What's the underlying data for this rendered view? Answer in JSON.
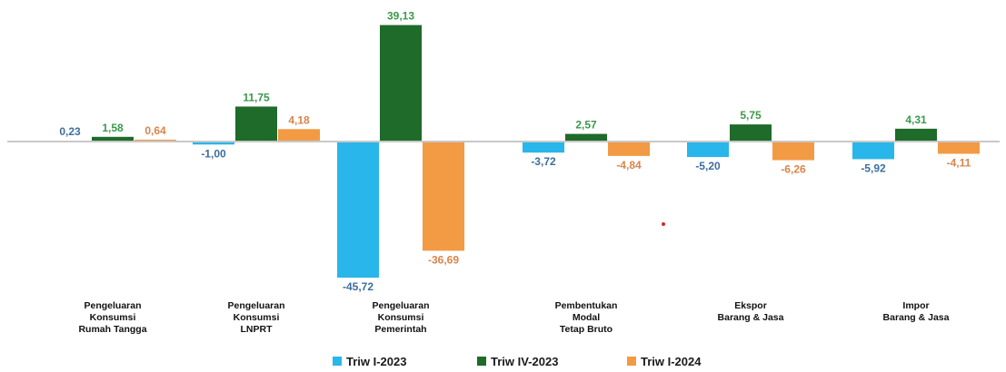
{
  "chart_data": {
    "type": "bar",
    "categories": [
      [
        "Pengeluaran",
        "Konsumsi",
        "Rumah Tangga"
      ],
      [
        "Pengeluaran",
        "Konsumsi",
        "LNPRT"
      ],
      [
        "Pengeluaran",
        "Konsumsi",
        "Pemerintah"
      ],
      [
        "Pembentukan",
        "Modal",
        "Tetap Bruto"
      ],
      [
        "Ekspor",
        "Barang & Jasa"
      ],
      [
        "Impor",
        "Barang & Jasa"
      ]
    ],
    "series": [
      {
        "name": "Triw I-2023",
        "color": "#29b6ea",
        "label_color": "#3c6e9e",
        "values": [
          0.23,
          -1.0,
          -45.72,
          -3.72,
          -5.2,
          -5.92
        ],
        "labels": [
          "0,23",
          "-1,00",
          "-45,72",
          "-3,72",
          "-5,20",
          "-5,92"
        ]
      },
      {
        "name": "Triw IV-2023",
        "color": "#1e6b2a",
        "label_color": "#3a9a4a",
        "values": [
          1.58,
          11.75,
          39.13,
          2.57,
          5.75,
          4.31
        ],
        "labels": [
          "1,58",
          "11,75",
          "39,13",
          "2,57",
          "5,75",
          "4,31"
        ]
      },
      {
        "name": "Triw I-2024",
        "color": "#f39a45",
        "label_color": "#d9844a",
        "values": [
          0.64,
          4.18,
          -36.69,
          -4.84,
          -6.26,
          -4.11
        ],
        "labels": [
          "0,64",
          "4,18",
          "-36,69",
          "-4,84",
          "-6,26",
          "-4,11"
        ]
      }
    ],
    "title": "",
    "xlabel": "",
    "ylabel": "",
    "ylim": [
      -45.72,
      39.13
    ],
    "grid": false,
    "legend_position": "bottom-center"
  }
}
